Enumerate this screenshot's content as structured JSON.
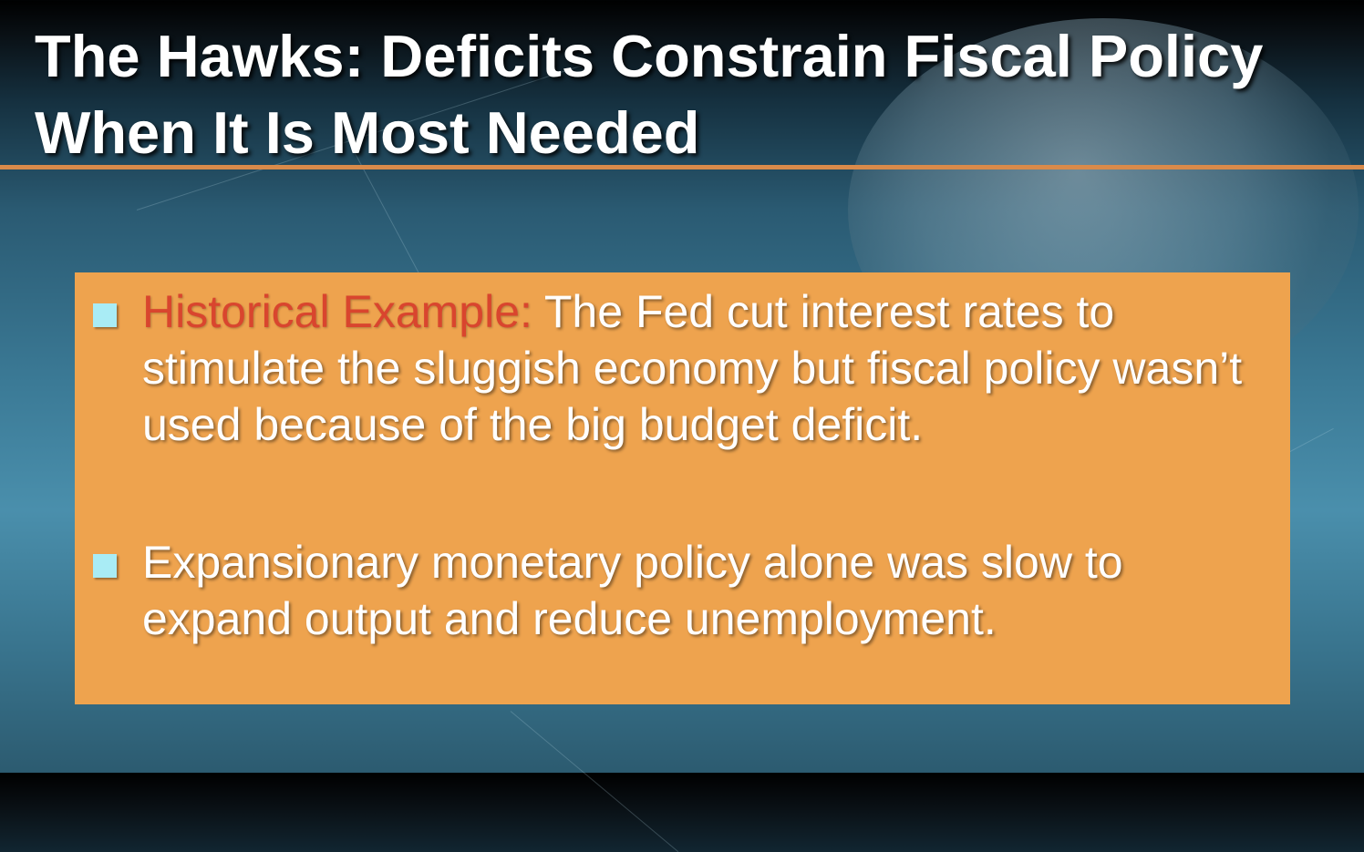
{
  "slide": {
    "title": "The Hawks: Deficits Constrain Fiscal Policy When It Is Most Needed",
    "bullets": [
      {
        "label": "Historical Example:",
        "text": " The Fed cut interest rates to stimulate the sluggish economy but fiscal policy wasn’t used because of the big budget deficit."
      },
      {
        "label": "",
        "text": "Expansionary monetary policy alone was slow to expand output and reduce unemployment."
      }
    ]
  },
  "colors": {
    "title_text": "#ffffff",
    "title_rule": "#d98a4a",
    "content_box": "#eea34e",
    "bullet_marker": "#a9ecf5",
    "highlight_label": "#d9452e",
    "background_top": "#000000",
    "background_mid": "#4a8fac"
  }
}
